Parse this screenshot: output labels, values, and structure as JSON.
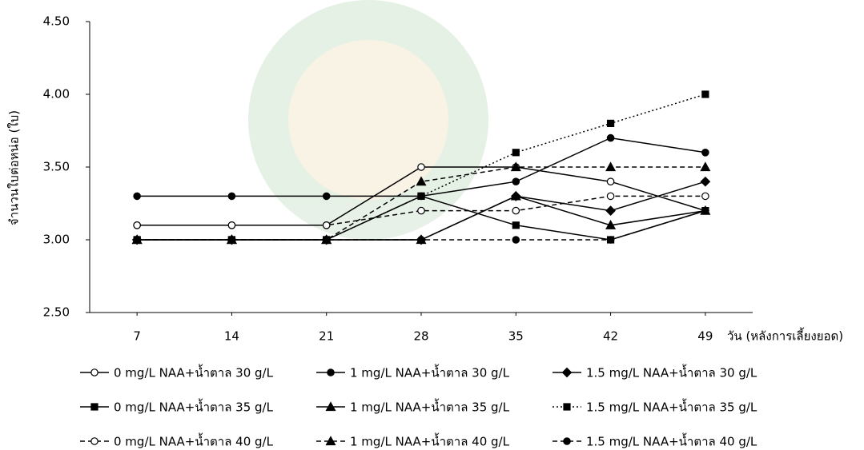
{
  "chart_data": {
    "type": "line",
    "y_label": "จำนวนใบต่อหน่อ (ใบ)",
    "x_label": "วัน (หลังการเลี้ยงยอด)",
    "x": [
      7,
      14,
      21,
      28,
      35,
      42,
      49
    ],
    "xticks": [
      7,
      14,
      21,
      28,
      35,
      42,
      49
    ],
    "xlim": [
      3.5,
      52.5
    ],
    "ylim": [
      2.5,
      4.5
    ],
    "yticks": [
      {
        "value": 2.5,
        "label": "2.50"
      },
      {
        "value": 3,
        "label": "3.00"
      },
      {
        "value": 3.5,
        "label": "3.50"
      },
      {
        "value": 4,
        "label": "4.00"
      },
      {
        "value": 4.5,
        "label": "4.50"
      }
    ],
    "grid": false,
    "series": [
      {
        "name": "0 mg/L NAA+น้ำตาล 30 g/L",
        "color": "#000000",
        "marker": "circle",
        "filled": false,
        "dash": "solid",
        "values": [
          3.1,
          3.1,
          3.1,
          3.5,
          3.5,
          3.4,
          3.2
        ]
      },
      {
        "name": "1 mg/L NAA+น้ำตาล 30 g/L",
        "color": "#000000",
        "marker": "circle",
        "filled": true,
        "dash": "solid",
        "values": [
          3.3,
          3.3,
          3.3,
          3.3,
          3.4,
          3.7,
          3.6
        ]
      },
      {
        "name": "1.5 mg/L NAA+น้ำตาล 30 g/L",
        "color": "#000000",
        "marker": "diamond",
        "filled": true,
        "dash": "solid",
        "values": [
          3.0,
          3.0,
          3.0,
          3.0,
          3.3,
          3.2,
          3.4
        ]
      },
      {
        "name": "0 mg/L NAA+น้ำตาล 35 g/L",
        "color": "#000000",
        "marker": "square",
        "filled": true,
        "dash": "solid",
        "values": [
          3.0,
          3.0,
          3.0,
          3.3,
          3.1,
          3.0,
          3.2
        ]
      },
      {
        "name": "1 mg/L NAA+น้ำตาล 35 g/L",
        "color": "#000000",
        "marker": "triangle",
        "filled": true,
        "dash": "solid",
        "values": [
          3.0,
          3.0,
          3.0,
          3.0,
          3.3,
          3.1,
          3.2
        ]
      },
      {
        "name": "1.5 mg/L NAA+น้ำตาล 35 g/L",
        "color": "#000000",
        "marker": "square",
        "filled": true,
        "dash": "dotted",
        "values": [
          3.0,
          3.0,
          3.0,
          3.3,
          3.6,
          3.8,
          4.0
        ]
      },
      {
        "name": "0 mg/L NAA+น้ำตาล 40 g/L",
        "color": "#000000",
        "marker": "circle",
        "filled": false,
        "dash": "dashed",
        "values": [
          3.1,
          3.1,
          3.1,
          3.2,
          3.2,
          3.3,
          3.3
        ]
      },
      {
        "name": "1 mg/L NAA+น้ำตาล 40 g/L",
        "color": "#000000",
        "marker": "triangle",
        "filled": true,
        "dash": "dashed",
        "values": [
          3.0,
          3.0,
          3.0,
          3.4,
          3.5,
          3.5,
          3.5
        ]
      },
      {
        "name": "1.5 mg/L NAA+น้ำตาล 40 g/L",
        "color": "#000000",
        "marker": "circle",
        "filled": true,
        "dash": "dashed",
        "values": [
          3.0,
          3.0,
          3.0,
          3.0,
          3.0,
          3.0,
          3.2
        ]
      }
    ]
  }
}
